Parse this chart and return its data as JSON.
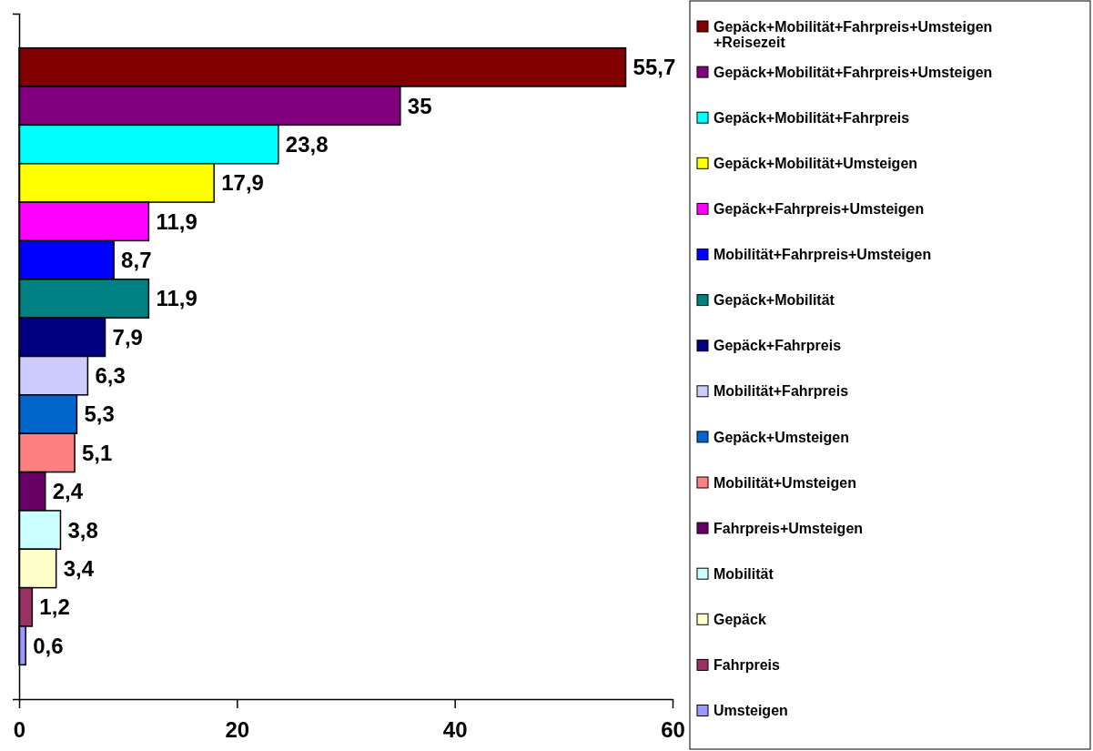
{
  "chart_data": {
    "type": "bar",
    "orientation": "horizontal",
    "categories": [
      null
    ],
    "xlim": [
      0,
      60
    ],
    "xticks": [
      0,
      20,
      40,
      60
    ],
    "grid": false,
    "legend": "right",
    "tick_labels": "x",
    "series": [
      {
        "name": "Gepäck+Mobilität+Fahrpreis+Umsteigen +Reisezeit",
        "color": "#800000",
        "values": [
          55.7
        ],
        "value_labels": [
          "55,7"
        ]
      },
      {
        "name": "Gepäck+Mobilität+Fahrpreis+Umsteigen",
        "color": "#800080",
        "values": [
          35
        ],
        "value_labels": [
          "35"
        ]
      },
      {
        "name": "Gepäck+Mobilität+Fahrpreis",
        "color": "#00ffff",
        "values": [
          23.8
        ],
        "value_labels": [
          "23,8"
        ]
      },
      {
        "name": "Gepäck+Mobilität+Umsteigen",
        "color": "#ffff00",
        "values": [
          17.9
        ],
        "value_labels": [
          "17,9"
        ]
      },
      {
        "name": "Gepäck+Fahrpreis+Umsteigen",
        "color": "#ff00ff",
        "values": [
          11.9
        ],
        "value_labels": [
          "11,9"
        ]
      },
      {
        "name": "Mobilität+Fahrpreis+Umsteigen",
        "color": "#0000ff",
        "values": [
          8.7
        ],
        "value_labels": [
          "8,7"
        ]
      },
      {
        "name": "Gepäck+Mobilität",
        "color": "#008080",
        "values": [
          11.9
        ],
        "value_labels": [
          "11,9"
        ]
      },
      {
        "name": "Gepäck+Fahrpreis",
        "color": "#000080",
        "values": [
          7.9
        ],
        "value_labels": [
          "7,9"
        ]
      },
      {
        "name": "Mobilität+Fahrpreis",
        "color": "#ccccff",
        "values": [
          6.3
        ],
        "value_labels": [
          "6,3"
        ]
      },
      {
        "name": "Gepäck+Umsteigen",
        "color": "#0066cc",
        "values": [
          5.3
        ],
        "value_labels": [
          "5,3"
        ]
      },
      {
        "name": "Mobilität+Umsteigen",
        "color": "#ff8080",
        "values": [
          5.1
        ],
        "value_labels": [
          "5,1"
        ]
      },
      {
        "name": "Fahrpreis+Umsteigen",
        "color": "#660066",
        "values": [
          2.4
        ],
        "value_labels": [
          "2,4"
        ]
      },
      {
        "name": "Mobilität",
        "color": "#ccffff",
        "values": [
          3.8
        ],
        "value_labels": [
          "3,8"
        ]
      },
      {
        "name": "Gepäck",
        "color": "#ffffcc",
        "values": [
          3.4
        ],
        "value_labels": [
          "3,4"
        ]
      },
      {
        "name": "Fahrpreis",
        "color": "#993366",
        "values": [
          1.2
        ],
        "value_labels": [
          "1,2"
        ]
      },
      {
        "name": "Umsteigen",
        "color": "#9999ff",
        "values": [
          0.6
        ],
        "value_labels": [
          "0,6"
        ]
      }
    ]
  }
}
